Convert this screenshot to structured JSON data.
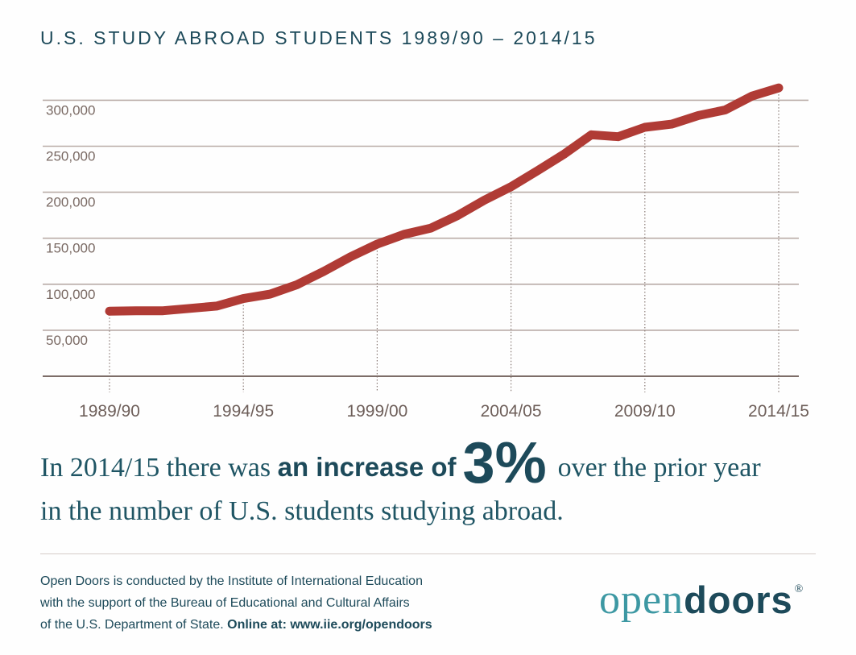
{
  "title": "U.S. STUDY ABROAD STUDENTS 1989/90 – 2014/15",
  "chart_data": {
    "type": "line",
    "title": "U.S. STUDY ABROAD STUDENTS 1989/90 – 2014/15",
    "xlabel": "",
    "ylabel": "",
    "ylim": [
      0,
      300000
    ],
    "yticks": [
      "300,000",
      "250,000",
      "200,000",
      "150,000",
      "100,000",
      "50,000"
    ],
    "ytick_values": [
      300000,
      250000,
      200000,
      150000,
      100000,
      50000
    ],
    "xticks": [
      "1989/90",
      "1994/95",
      "1999/00",
      "2004/05",
      "2009/10",
      "2014/15"
    ],
    "x": [
      "1989/90",
      "1990/91",
      "1991/92",
      "1992/93",
      "1993/94",
      "1994/95",
      "1995/96",
      "1996/97",
      "1997/98",
      "1998/99",
      "1999/00",
      "2000/01",
      "2001/02",
      "2002/03",
      "2003/04",
      "2004/05",
      "2005/06",
      "2006/07",
      "2007/08",
      "2008/09",
      "2009/10",
      "2010/11",
      "2011/12",
      "2012/13",
      "2013/14",
      "2014/15"
    ],
    "series": [
      {
        "values": [
          70727,
          71154,
          71154,
          73691,
          76302,
          84403,
          89242,
          99448,
          113959,
          129770,
          143590,
          154168,
          160920,
          174629,
          191321,
          205983,
          223534,
          241791,
          262416,
          260327,
          270604,
          273996,
          283332,
          289408,
          304467,
          313415
        ]
      }
    ],
    "line_color": "#b03b35",
    "grid": true
  },
  "headline": {
    "part1": "In 2014/15 there was",
    "bold": "an increase of",
    "big": "3%",
    "part2": "over the prior year",
    "line2": "in the number of U.S. students studying abroad."
  },
  "footer": {
    "line1": "Open Doors is conducted by the Institute of International Education",
    "line2": "with the support of the Bureau of Educational and Cultural Affairs",
    "line3": "of the U.S. Department of State.",
    "online": "Online at: www.iie.org/opendoors"
  },
  "logo": {
    "open": "open",
    "doors": "doors",
    "reg": "®"
  }
}
